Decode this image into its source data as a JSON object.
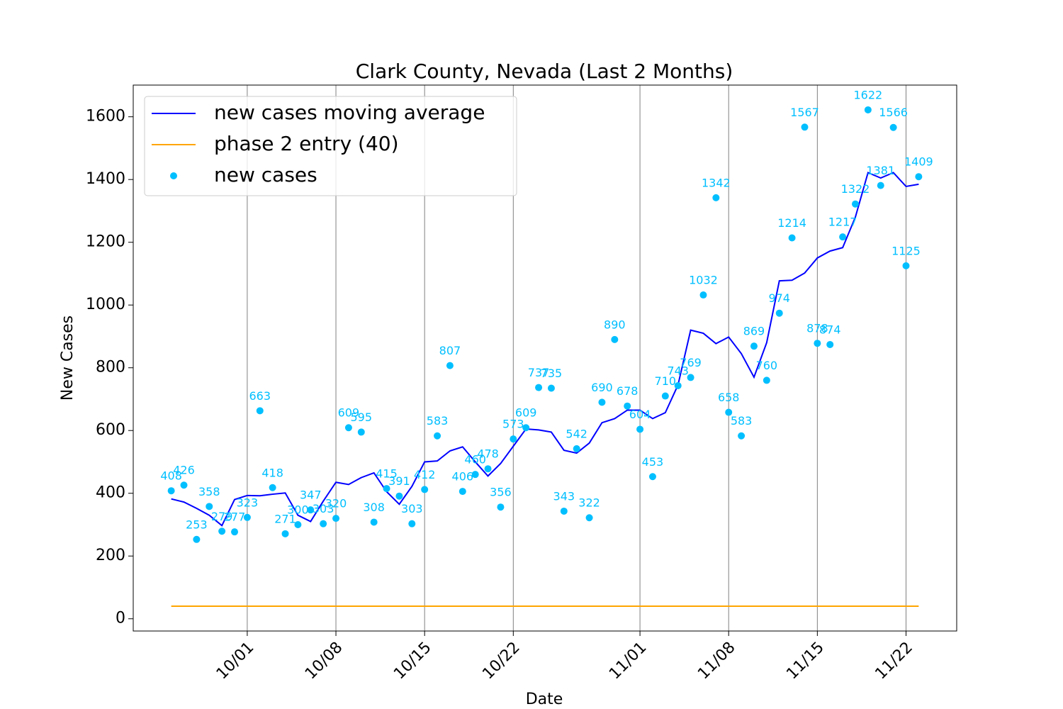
{
  "chart_data": {
    "type": "line",
    "title": "Clark County, Nevada (Last 2 Months)",
    "xlabel": "Date",
    "ylabel": "New Cases",
    "x": [
      "09/25",
      "09/26",
      "09/27",
      "09/28",
      "09/29",
      "09/30",
      "10/01",
      "10/02",
      "10/03",
      "10/04",
      "10/05",
      "10/06",
      "10/07",
      "10/08",
      "10/09",
      "10/10",
      "10/11",
      "10/12",
      "10/13",
      "10/14",
      "10/15",
      "10/16",
      "10/17",
      "10/18",
      "10/19",
      "10/20",
      "10/21",
      "10/22",
      "10/23",
      "10/24",
      "10/25",
      "10/26",
      "10/27",
      "10/28",
      "10/29",
      "10/30",
      "10/31",
      "11/01",
      "11/02",
      "11/03",
      "11/04",
      "11/05",
      "11/06",
      "11/07",
      "11/08",
      "11/09",
      "11/10",
      "11/11",
      "11/12",
      "11/13",
      "11/14",
      "11/15",
      "11/16",
      "11/17",
      "11/18",
      "11/19",
      "11/20",
      "11/21",
      "11/22",
      "11/23"
    ],
    "series": [
      {
        "name": "new cases moving average",
        "color": "#0000ff",
        "style": "line",
        "values": [
          382,
          372,
          352,
          330,
          297,
          380,
          393,
          392,
          397,
          401,
          330,
          310,
          375,
          435,
          428,
          450,
          465,
          405,
          365,
          422,
          500,
          503,
          535,
          548,
          500,
          455,
          495,
          550,
          605,
          602,
          595,
          537,
          528,
          560,
          625,
          638,
          665,
          665,
          638,
          657,
          745,
          920,
          910,
          877,
          898,
          845,
          770,
          880,
          1077,
          1079,
          1102,
          1150,
          1172,
          1183,
          1280,
          1422,
          1405,
          1422,
          1378,
          1385
        ]
      },
      {
        "name": "phase 2 entry (40)",
        "color": "#ffa500",
        "style": "line",
        "values": [
          40,
          40,
          40,
          40,
          40,
          40,
          40,
          40,
          40,
          40,
          40,
          40,
          40,
          40,
          40,
          40,
          40,
          40,
          40,
          40,
          40,
          40,
          40,
          40,
          40,
          40,
          40,
          40,
          40,
          40,
          40,
          40,
          40,
          40,
          40,
          40,
          40,
          40,
          40,
          40,
          40,
          40,
          40,
          40,
          40,
          40,
          40,
          40,
          40,
          40,
          40,
          40,
          40,
          40,
          40,
          40,
          40,
          40,
          40,
          40
        ]
      },
      {
        "name": "new cases",
        "color": "#00bfff",
        "style": "scatter",
        "data_labels": true,
        "values": [
          408,
          426,
          253,
          358,
          279,
          277,
          323,
          663,
          418,
          271,
          300,
          347,
          303,
          320,
          609,
          595,
          308,
          415,
          391,
          303,
          412,
          583,
          807,
          406,
          460,
          478,
          356,
          573,
          609,
          737,
          735,
          343,
          542,
          322,
          690,
          890,
          678,
          604,
          453,
          710,
          743,
          769,
          1032,
          1342,
          658,
          583,
          869,
          760,
          974,
          1214,
          1567,
          878,
          874,
          1217,
          1322,
          1622,
          1381,
          1566,
          1125,
          1409
        ]
      }
    ],
    "xlim": [
      "09/22",
      "11/26"
    ],
    "xticks": [
      "10/01",
      "10/08",
      "10/15",
      "10/22",
      "11/01",
      "11/08",
      "11/15",
      "11/22"
    ],
    "xgrid": true,
    "ylim": [
      -39,
      1701
    ],
    "yticks": [
      0,
      200,
      400,
      600,
      800,
      1000,
      1200,
      1400,
      1600
    ],
    "legend": "upper left"
  }
}
